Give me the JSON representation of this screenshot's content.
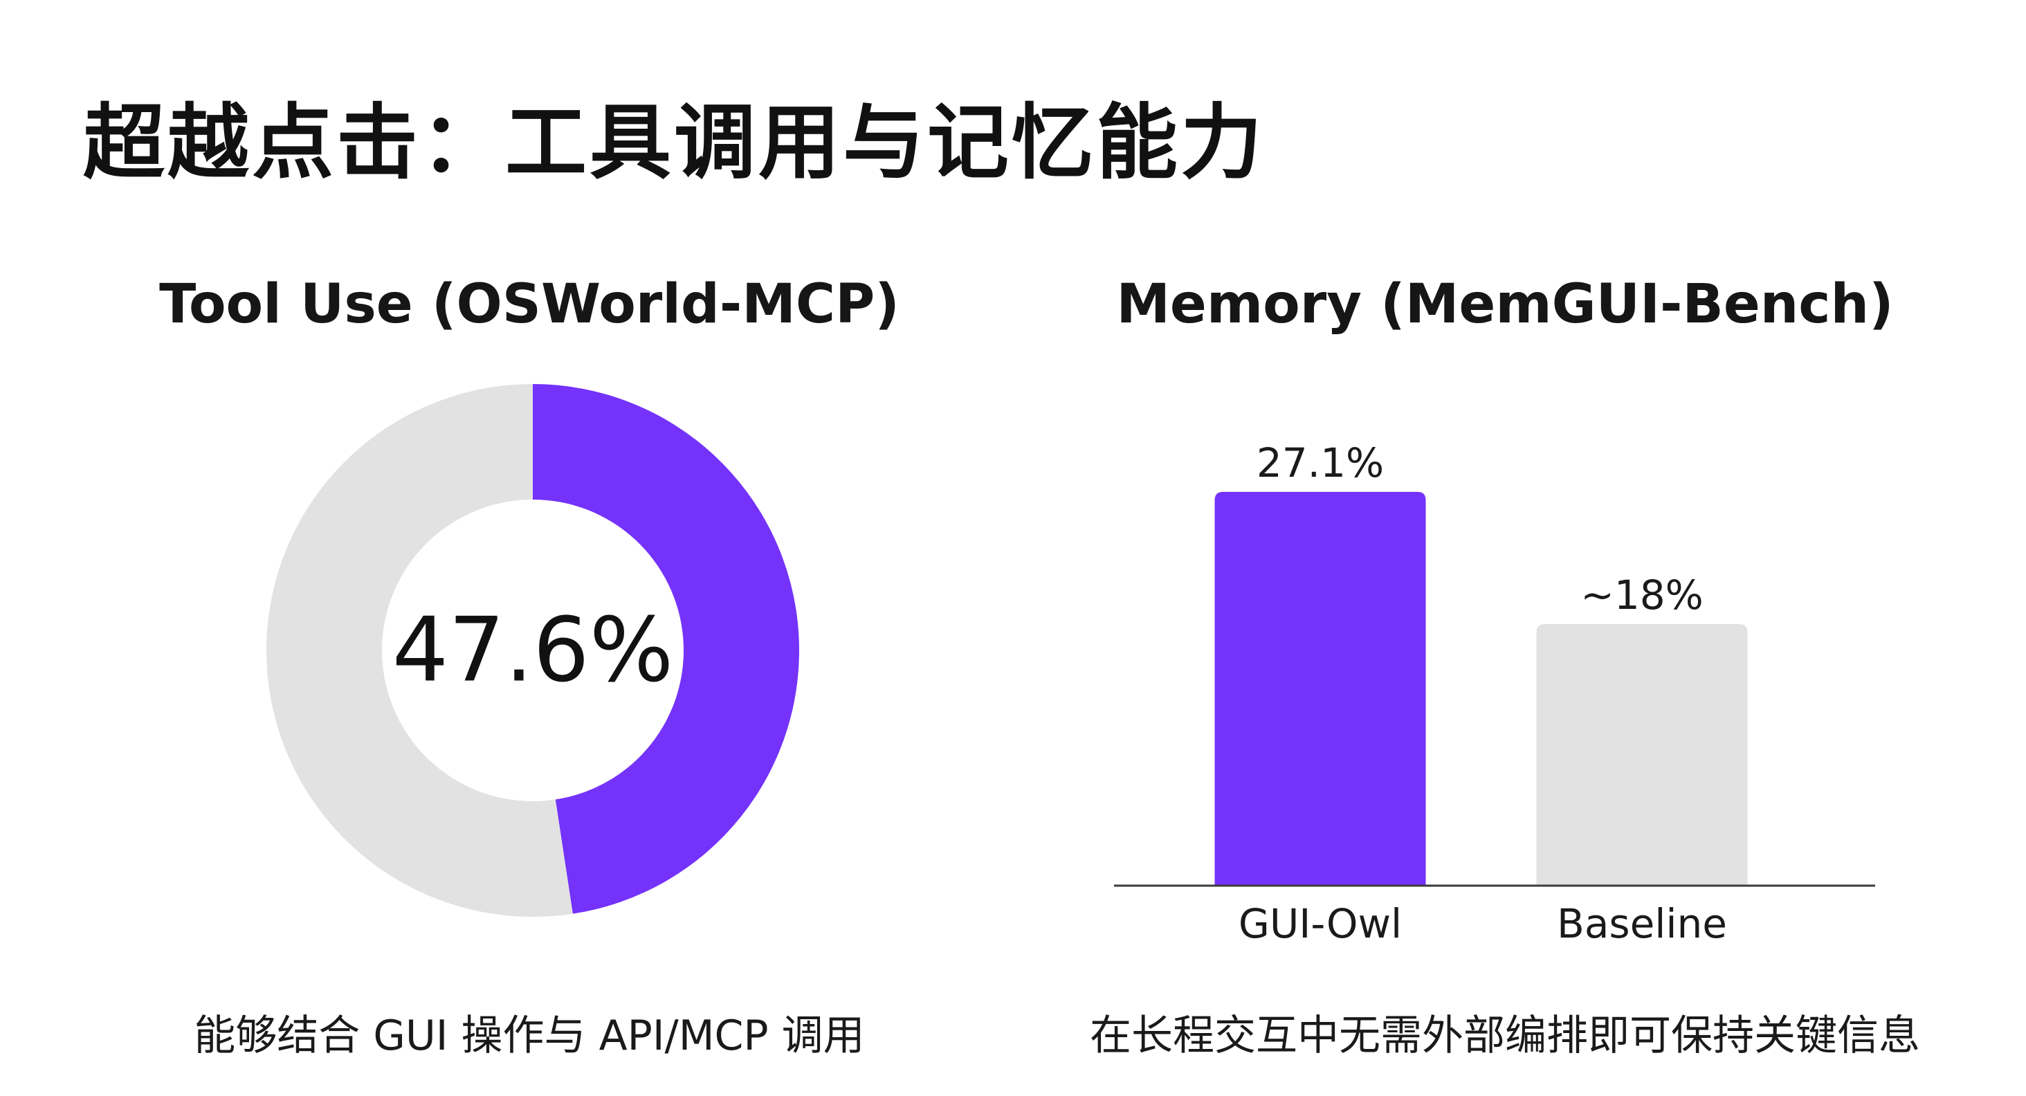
{
  "header": {
    "title": "超越点击：工具调用与记忆能力"
  },
  "colors": {
    "accent": "#7432FA",
    "neutral": "#E2E2E2",
    "axis": "#3A3A3A"
  },
  "chart_data": [
    {
      "type": "pie",
      "title": "Tool Use (OSWorld-MCP)",
      "center_label": "47.6%",
      "slices": [
        {
          "value": 47.6,
          "color": "#7432FA"
        },
        {
          "value": 52.4,
          "color": "#E2E2E2"
        }
      ],
      "caption": "能够结合 GUI 操作与 API/MCP 调用"
    },
    {
      "type": "bar",
      "title": "Memory (MemGUI-Bench)",
      "categories": [
        "GUI-Owl",
        "Baseline"
      ],
      "values": [
        27.1,
        18
      ],
      "value_labels": [
        "27.1%",
        "~18%"
      ],
      "colors": [
        "#7432FA",
        "#E2E2E2"
      ],
      "ylim": [
        0,
        30
      ],
      "caption": "在长程交互中无需外部编排即可保持关键信息"
    }
  ]
}
